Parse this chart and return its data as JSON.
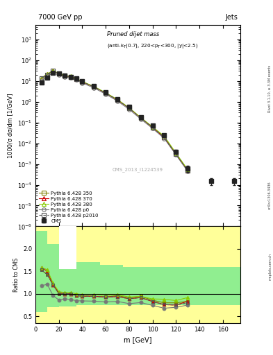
{
  "title_top": "7000 GeV pp",
  "title_right": "Jets",
  "plot_title": "Pruned dijet mass (anti-k_{T}(0.7), 220<p_{T}<300, |y|<2.5)",
  "xlabel": "m [GeV]",
  "ylabel_main": "1000/σ dσ/dm [1/GeV]",
  "ylabel_ratio": "Ratio to CMS",
  "watermark": "CMS_2013_I1224539",
  "arxiv": "arXiv:1306.3436",
  "rivet": "Rivet 3.1.10, ≥ 3.3M events",
  "cms_x": [
    5,
    10,
    15,
    20,
    25,
    30,
    35,
    40,
    50,
    60,
    70,
    80,
    90,
    100,
    110,
    120,
    130,
    150,
    170
  ],
  "cms_y": [
    8.5,
    14,
    25,
    22,
    18,
    16,
    13,
    9.5,
    5.5,
    2.8,
    1.3,
    0.55,
    0.18,
    0.07,
    0.025,
    0.004,
    0.0006,
    0.00015,
    0.00015
  ],
  "cms_yerr": [
    1.5,
    2,
    3,
    2.5,
    2,
    1.5,
    1.5,
    1.0,
    0.5,
    0.25,
    0.12,
    0.05,
    0.02,
    0.006,
    0.003,
    0.0008,
    0.0002,
    5e-05,
    5e-05
  ],
  "py350_x": [
    5,
    10,
    15,
    20,
    25,
    30,
    35,
    40,
    50,
    60,
    70,
    80,
    90,
    100,
    110,
    120,
    130
  ],
  "py350_y": [
    13,
    20,
    30,
    22,
    18,
    16,
    12.5,
    9,
    5.2,
    2.6,
    1.25,
    0.5,
    0.17,
    0.06,
    0.02,
    0.0032,
    0.0005
  ],
  "py370_x": [
    5,
    10,
    15,
    20,
    25,
    30,
    35,
    40,
    50,
    60,
    70,
    80,
    90,
    100,
    110,
    120,
    130
  ],
  "py370_y": [
    13.5,
    21,
    30,
    22.5,
    18,
    16,
    12.5,
    9,
    5.2,
    2.6,
    1.22,
    0.49,
    0.165,
    0.058,
    0.019,
    0.003,
    0.0005
  ],
  "py380_x": [
    5,
    10,
    15,
    20,
    25,
    30,
    35,
    40,
    50,
    60,
    70,
    80,
    90,
    100,
    110,
    120,
    130
  ],
  "py380_y": [
    13.5,
    21.5,
    31,
    23,
    18.5,
    16.5,
    13,
    9.3,
    5.4,
    2.7,
    1.28,
    0.51,
    0.17,
    0.062,
    0.022,
    0.0034,
    0.00055
  ],
  "pyp0_x": [
    5,
    10,
    15,
    20,
    25,
    30,
    35,
    40,
    50,
    60,
    70,
    80,
    90,
    100,
    110,
    120,
    130
  ],
  "pyp0_y": [
    10,
    17,
    24,
    19,
    16,
    14,
    11,
    8,
    4.6,
    2.3,
    1.08,
    0.43,
    0.145,
    0.052,
    0.017,
    0.0028,
    0.00045
  ],
  "pyp2010_x": [
    5,
    10,
    15,
    20,
    25,
    30,
    35,
    40,
    50,
    60,
    70,
    80,
    90,
    100,
    110,
    120,
    130
  ],
  "pyp2010_y": [
    13,
    20,
    30,
    22,
    18,
    16,
    12.5,
    9,
    5.2,
    2.6,
    1.22,
    0.49,
    0.165,
    0.058,
    0.019,
    0.003,
    0.00048
  ],
  "color_cms": "#222222",
  "color_350": "#808000",
  "color_370": "#cc0000",
  "color_380": "#88cc00",
  "color_p0": "#777777",
  "color_p2010": "#555555",
  "ratio_cms_err_x": [
    0,
    10,
    20,
    35,
    55,
    75,
    95,
    115,
    135,
    175
  ],
  "ratio_green_y1": [
    0.5,
    0.5,
    0.5,
    0.5,
    0.5,
    0.5,
    0.5,
    0.5,
    0.5,
    0.5
  ],
  "ratio_green_y2": [
    2.5,
    2.5,
    2.5,
    2.5,
    2.5,
    2.5,
    2.5,
    2.5,
    2.5,
    2.5
  ],
  "ylim_main": [
    1e-06,
    5000.0
  ],
  "ylim_ratio": [
    0.35,
    2.5
  ],
  "xlim": [
    0,
    175
  ]
}
